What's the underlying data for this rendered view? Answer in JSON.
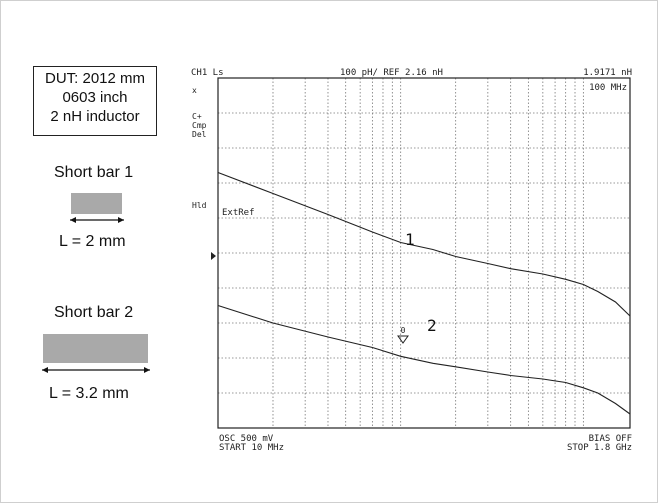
{
  "legend": {
    "dut_lines": [
      "DUT: 2012 mm",
      "0603 inch",
      "2 nH inductor"
    ],
    "short_bar_1": {
      "title": "Short bar 1",
      "length_label": "L = 2 mm"
    },
    "short_bar_2": {
      "title": "Short bar 2",
      "length_label": "L = 3.2 mm"
    },
    "bar_color": "#a9a9a9"
  },
  "analyzer": {
    "channel": "CH1 Ls",
    "scale_ref": "100 pH/ REF 2.16 nH",
    "marker_value": "1.9171 nH",
    "marker_freq": "100 MHz",
    "side_labels": [
      "x",
      "C+",
      "Cmp",
      "Del",
      "Hld"
    ],
    "ext_ref": "ExtRef",
    "osc": "OSC  500 mV",
    "bias": "BIAS OFF",
    "start": "START  10 MHz",
    "stop": "STOP  1.8 GHz",
    "marker_symbol": "0"
  },
  "chart_data": {
    "type": "line",
    "xscale": "log",
    "xlim": [
      10,
      1800
    ],
    "ylim": [
      1.66,
      2.66
    ],
    "xlabel_start": "10 MHz",
    "xlabel_stop": "1.8 GHz",
    "reference_value": 2.16,
    "grid": true,
    "series": [
      {
        "name": "1",
        "x": [
          10,
          20,
          40,
          70,
          100,
          150,
          200,
          300,
          400,
          600,
          800,
          1000,
          1200,
          1500,
          1800
        ],
        "y": [
          2.39,
          2.33,
          2.27,
          2.22,
          2.19,
          2.17,
          2.15,
          2.13,
          2.115,
          2.1,
          2.085,
          2.07,
          2.05,
          2.02,
          1.98
        ]
      },
      {
        "name": "2",
        "x": [
          10,
          20,
          40,
          70,
          100,
          150,
          200,
          300,
          400,
          600,
          800,
          1000,
          1200,
          1500,
          1800
        ],
        "y": [
          2.01,
          1.96,
          1.92,
          1.89,
          1.865,
          1.845,
          1.835,
          1.82,
          1.81,
          1.8,
          1.79,
          1.775,
          1.76,
          1.73,
          1.7
        ]
      }
    ]
  }
}
